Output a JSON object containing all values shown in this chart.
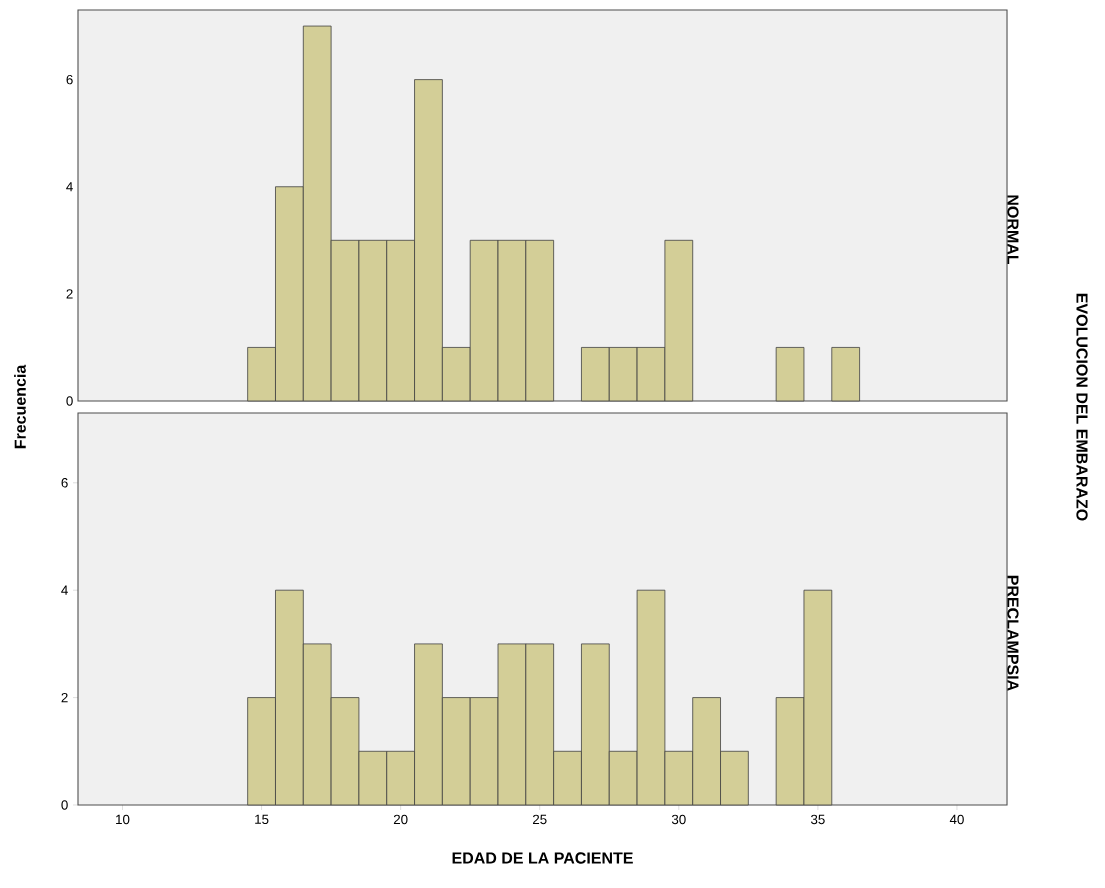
{
  "chart_data": [
    {
      "type": "histogram",
      "title": "NORMAL",
      "ylabel": "Frecuencia",
      "annotations": [
        "EVOLUCION DEL EMBARAZO"
      ],
      "color": "#d3ce97",
      "bins": [
        14.5,
        15.5,
        16.5,
        17.5,
        18.5,
        19.5,
        20.5,
        21.5,
        22.5,
        23.5,
        24.5,
        25.5,
        26.5,
        27.5,
        28.5,
        29.5,
        30.5,
        31.5,
        32.5,
        33.5,
        34.5,
        35.5,
        36.5
      ],
      "values": [
        1,
        4,
        7,
        3,
        3,
        3,
        6,
        1,
        3,
        3,
        3,
        0,
        1,
        1,
        1,
        3,
        0,
        0,
        0,
        1,
        0,
        1
      ],
      "xlim": [
        8.4,
        41.8
      ],
      "xticks": [
        10,
        15,
        20,
        25,
        30,
        35,
        40
      ],
      "ylim": [
        0,
        7.3
      ],
      "yticks": [
        0,
        2,
        4,
        6
      ],
      "tick_labels": "y",
      "grid": false
    },
    {
      "type": "histogram",
      "title": "PRECLAMPSIA",
      "xlabel": "EDAD DE LA PACIENTE",
      "color": "#d3ce97",
      "bins": [
        14.5,
        15.5,
        16.5,
        17.5,
        18.5,
        19.5,
        20.5,
        21.5,
        22.5,
        23.5,
        24.5,
        25.5,
        26.5,
        27.5,
        28.5,
        29.5,
        30.5,
        31.5,
        32.5,
        33.5,
        34.5,
        35.5
      ],
      "values": [
        2,
        4,
        3,
        2,
        1,
        1,
        3,
        2,
        2,
        3,
        3,
        1,
        3,
        1,
        4,
        1,
        2,
        1,
        0,
        2,
        4
      ],
      "xlim": [
        8.4,
        41.8
      ],
      "xticks": [
        10,
        15,
        20,
        25,
        30,
        35,
        40
      ],
      "ylim": [
        0,
        7.3
      ],
      "yticks": [
        0,
        2,
        4,
        6
      ],
      "grid": false
    }
  ]
}
